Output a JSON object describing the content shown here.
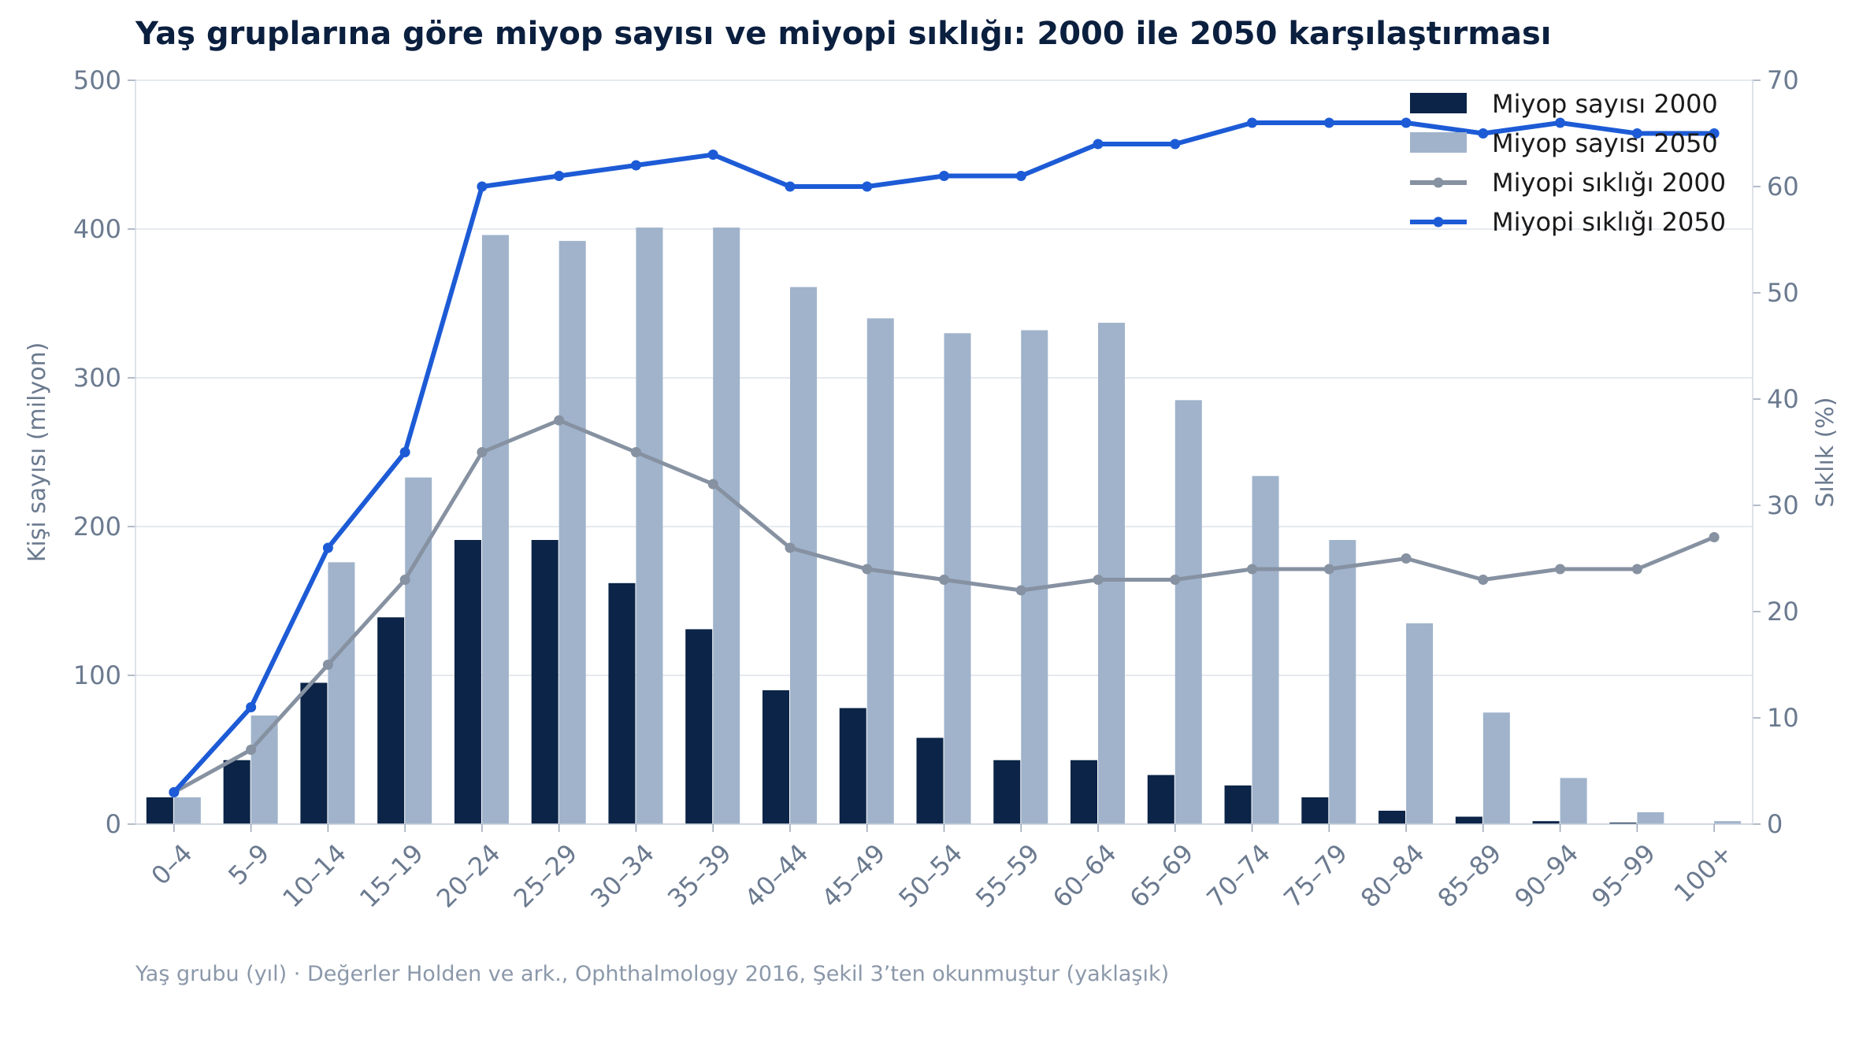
{
  "chart_data": {
    "type": "bar",
    "title": "Yaş gruplarına göre miyop sayısı ve miyopi sıklığı: 2000 ile 2050 karşılaştırması",
    "xlabel": "Yaş grubu (yıl)",
    "note": "Yaş grubu (yıl) · Değerler Holden ve ark., Ophthalmology 2016, Şekil 3’ten okunmuştur (yaklaşık)",
    "ylabel": "Kişi sayısı (milyon)",
    "y2label": "Sıklık (%)",
    "ylim": [
      0,
      500
    ],
    "y2lim": [
      0,
      70
    ],
    "yticks": [
      0,
      100,
      200,
      300,
      400,
      500
    ],
    "y2ticks": [
      0,
      10,
      20,
      30,
      40,
      50,
      60,
      70
    ],
    "grid": "horizontal",
    "legend_position": "top-right",
    "categories": [
      "0–4",
      "5–9",
      "10–14",
      "15–19",
      "20–24",
      "25–29",
      "30–34",
      "35–39",
      "40–44",
      "45–49",
      "50–54",
      "55–59",
      "60–64",
      "65–69",
      "70–74",
      "75–79",
      "80–84",
      "85–89",
      "90–94",
      "95–99",
      "100+"
    ],
    "series": [
      {
        "name": "Miyop sayısı 2000",
        "kind": "bar",
        "axis": "left",
        "color": "#0b2447",
        "values": [
          18,
          43,
          95,
          139,
          191,
          191,
          162,
          131,
          90,
          78,
          58,
          43,
          43,
          33,
          26,
          18,
          9,
          5,
          2,
          1,
          null
        ]
      },
      {
        "name": "Miyop sayısı 2050",
        "kind": "bar",
        "axis": "left",
        "color": "#a0b3cb",
        "values": [
          18,
          73,
          176,
          233,
          396,
          392,
          401,
          401,
          361,
          340,
          330,
          332,
          337,
          285,
          234,
          191,
          135,
          75,
          31,
          8,
          2
        ]
      },
      {
        "name": "Miyopi sıklığı 2000",
        "kind": "line",
        "axis": "right",
        "color": "#8691a1",
        "values": [
          3,
          7,
          15,
          23,
          35,
          38,
          35,
          32,
          26,
          24,
          23,
          22,
          23,
          23,
          24,
          24,
          25,
          23,
          24,
          24,
          27
        ]
      },
      {
        "name": "Miyopi sıklığı 2050",
        "kind": "line",
        "axis": "right",
        "color": "#1d5bd6",
        "values": [
          3,
          11,
          26,
          35,
          60,
          61,
          62,
          63,
          60,
          60,
          61,
          61,
          64,
          64,
          66,
          66,
          66,
          65,
          66,
          65,
          65
        ]
      }
    ],
    "colors": {
      "title": "#0b1f3f",
      "axis_text": "#6b7a8f",
      "grid": "#dde3ea",
      "note": "#8b98aa",
      "legend_text": "#1a1a1a"
    }
  }
}
